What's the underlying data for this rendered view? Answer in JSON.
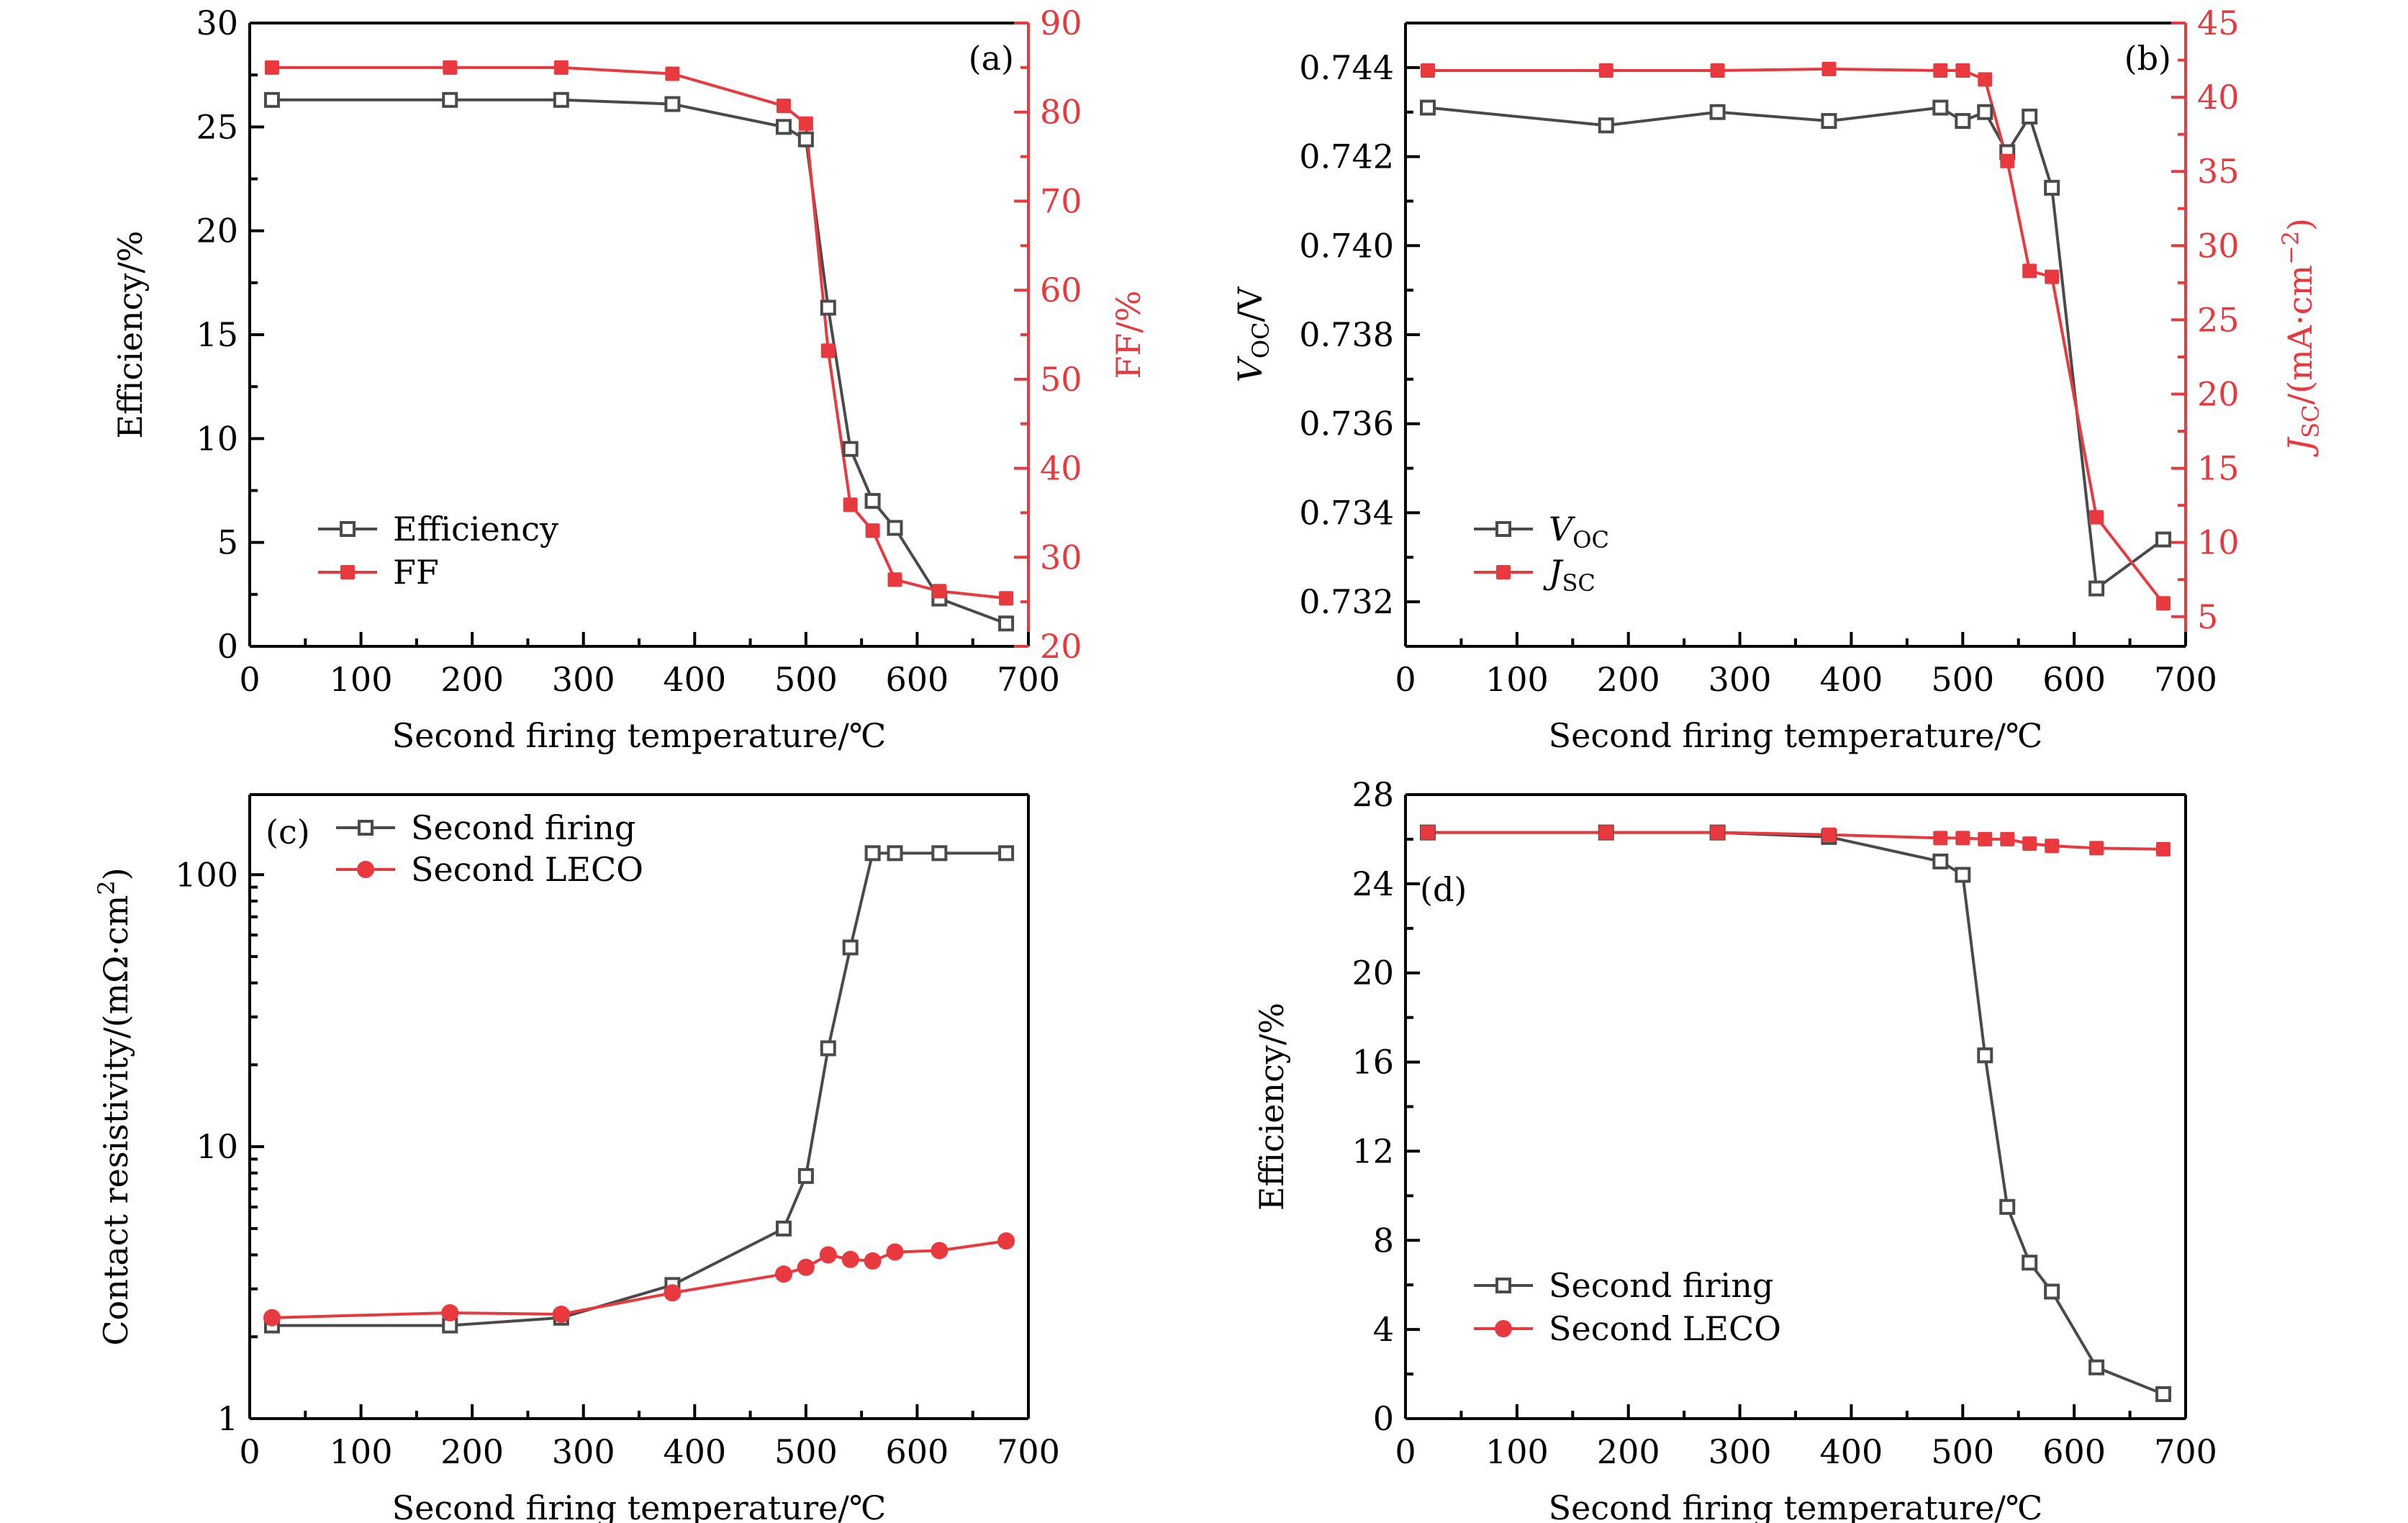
{
  "figure": {
    "colors": {
      "firing": "#4a4a4a",
      "leco": "#e8393e",
      "axis": "#000000",
      "red_axis": "#e8393e"
    }
  },
  "chart_data": [
    {
      "id": "a",
      "type": "line",
      "panel_label": "(a)",
      "xlabel": "Second firing temperature/℃",
      "ylabel": "Efficiency/%",
      "y2label": "FF/%",
      "xlim": [
        0,
        700
      ],
      "ylim": [
        0,
        30
      ],
      "y2lim": [
        20,
        90
      ],
      "xticks": [
        0,
        100,
        200,
        300,
        400,
        500,
        600,
        700
      ],
      "yticks": [
        0,
        5,
        10,
        15,
        20,
        25,
        30
      ],
      "y2ticks": [
        20,
        30,
        40,
        50,
        60,
        70,
        80,
        90
      ],
      "legend_position": "lower-left",
      "x": [
        20,
        180,
        280,
        380,
        480,
        500,
        520,
        540,
        560,
        580,
        620,
        680
      ],
      "series": [
        {
          "name": "Efficiency",
          "axis": "left",
          "marker": "open-square",
          "color": "#4a4a4a",
          "values": [
            26.3,
            26.3,
            26.3,
            26.1,
            25.0,
            24.4,
            16.3,
            9.5,
            7.0,
            5.7,
            2.3,
            1.1
          ]
        },
        {
          "name": "FF",
          "axis": "right",
          "marker": "filled-square",
          "color": "#e8393e",
          "values": [
            85.0,
            85.0,
            85.0,
            84.3,
            80.7,
            78.7,
            53.2,
            35.9,
            33.0,
            27.5,
            26.2,
            25.4
          ]
        }
      ]
    },
    {
      "id": "b",
      "type": "line",
      "panel_label": "(b)",
      "xlabel": "Second firing temperature/℃",
      "ylabel_main": "V",
      "ylabel_sub": "OC",
      "ylabel_tail": "/V",
      "y2label_main": "J",
      "y2label_sub": "SC",
      "y2label_tail": "/(mA·cm",
      "y2label_sup": "−2",
      "y2label_end": ")",
      "xlim": [
        0,
        700
      ],
      "ylim": [
        0.731,
        0.745
      ],
      "y2lim": [
        3,
        45
      ],
      "xticks": [
        0,
        100,
        200,
        300,
        400,
        500,
        600,
        700
      ],
      "yticks": [
        0.732,
        0.734,
        0.736,
        0.738,
        0.74,
        0.742,
        0.744
      ],
      "ytick_labels": [
        "0.732",
        "0.734",
        "0.736",
        "0.738",
        "0.740",
        "0.742",
        "0.744"
      ],
      "y2ticks": [
        5,
        10,
        15,
        20,
        25,
        30,
        35,
        40,
        45
      ],
      "legend_position": "lower-left",
      "x": [
        20,
        180,
        280,
        380,
        480,
        500,
        520,
        540,
        560,
        580,
        620,
        680
      ],
      "series": [
        {
          "name": "V_OC",
          "label_main": "V",
          "label_sub": "OC",
          "axis": "left",
          "marker": "open-square",
          "color": "#4a4a4a",
          "values": [
            0.7431,
            0.7427,
            0.743,
            0.7428,
            0.7431,
            0.7428,
            0.743,
            0.7421,
            0.7429,
            0.7413,
            0.7323,
            0.7334
          ]
        },
        {
          "name": "J_SC",
          "label_main": "J",
          "label_sub": "SC",
          "axis": "right",
          "marker": "filled-square",
          "color": "#e8393e",
          "values": [
            41.8,
            41.8,
            41.8,
            41.9,
            41.8,
            41.8,
            41.2,
            35.7,
            28.3,
            27.9,
            11.7,
            5.9
          ]
        }
      ]
    },
    {
      "id": "c",
      "type": "line",
      "panel_label": "(c)",
      "xlabel": "Second firing temperature/℃",
      "ylabel": "Contact resistivity/(mΩ·cm",
      "ylabel_sup": "2",
      "ylabel_end": ")",
      "yscale": "log",
      "xlim": [
        0,
        700
      ],
      "ylim": [
        1,
        197
      ],
      "xticks": [
        0,
        100,
        200,
        300,
        400,
        500,
        600,
        700
      ],
      "yticks": [
        1,
        10,
        100
      ],
      "legend_position": "top-left",
      "x": [
        20,
        180,
        280,
        380,
        480,
        500,
        520,
        540,
        560,
        580,
        620,
        680
      ],
      "series": [
        {
          "name": "Second firing",
          "marker": "open-square",
          "color": "#4a4a4a",
          "values": [
            2.2,
            2.2,
            2.35,
            3.1,
            5.0,
            7.8,
            23,
            54,
            120,
            120,
            120,
            120
          ]
        },
        {
          "name": "Second LECO",
          "marker": "filled-circle",
          "color": "#e8393e",
          "values": [
            2.35,
            2.45,
            2.42,
            2.9,
            3.4,
            3.6,
            4.0,
            3.85,
            3.8,
            4.1,
            4.15,
            4.5
          ]
        }
      ]
    },
    {
      "id": "d",
      "type": "line",
      "panel_label": "(d)",
      "xlabel": "Second firing temperature/℃",
      "ylabel": "Efficiency/%",
      "xlim": [
        0,
        700
      ],
      "ylim": [
        0,
        28
      ],
      "xticks": [
        0,
        100,
        200,
        300,
        400,
        500,
        600,
        700
      ],
      "yticks": [
        0,
        4,
        8,
        12,
        16,
        20,
        24,
        28
      ],
      "legend_position": "lower-left",
      "x": [
        20,
        180,
        280,
        380,
        480,
        500,
        520,
        540,
        560,
        580,
        620,
        680
      ],
      "series": [
        {
          "name": "Second firing",
          "marker": "open-square",
          "color": "#4a4a4a",
          "values": [
            26.3,
            26.3,
            26.3,
            26.1,
            25.0,
            24.4,
            16.3,
            9.5,
            7.0,
            5.7,
            2.3,
            1.1
          ]
        },
        {
          "name": "Second LECO",
          "marker": "filled-square",
          "legend_marker": "filled-circle",
          "color": "#e8393e",
          "values": [
            26.3,
            26.3,
            26.3,
            26.2,
            26.05,
            26.05,
            26.0,
            26.0,
            25.8,
            25.7,
            25.6,
            25.55
          ]
        }
      ]
    }
  ]
}
